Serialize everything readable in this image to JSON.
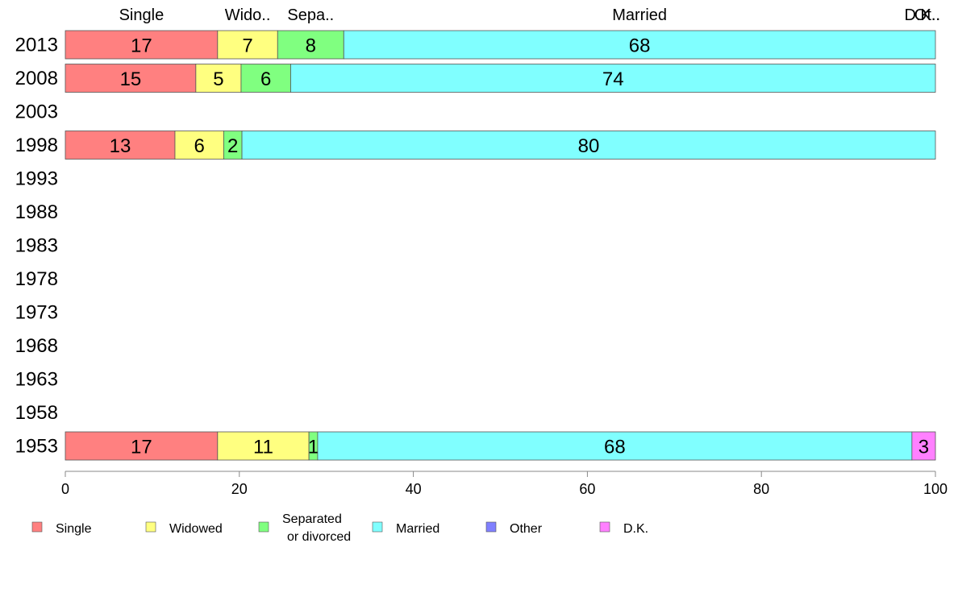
{
  "chart_data": {
    "type": "bar",
    "orientation": "horizontal",
    "stacked": true,
    "categories": [
      "2013",
      "2008",
      "2003",
      "1998",
      "1993",
      "1988",
      "1983",
      "1978",
      "1973",
      "1968",
      "1963",
      "1958",
      "1953"
    ],
    "series": [
      {
        "name": "Single",
        "color": "#ff8080",
        "values": [
          17.5,
          15,
          null,
          12.6,
          null,
          null,
          null,
          null,
          null,
          null,
          null,
          null,
          17.5
        ]
      },
      {
        "name": "Widowed",
        "color": "#ffff80",
        "values": [
          6.9,
          5.2,
          null,
          5.6,
          null,
          null,
          null,
          null,
          null,
          null,
          null,
          null,
          10.5
        ]
      },
      {
        "name": "Separated or divorced",
        "color": "#80ff80",
        "values": [
          7.6,
          5.7,
          null,
          2.1,
          null,
          null,
          null,
          null,
          null,
          null,
          null,
          null,
          1.0
        ]
      },
      {
        "name": "Married",
        "color": "#80ffff",
        "values": [
          68,
          74.1,
          null,
          79.7,
          null,
          null,
          null,
          null,
          null,
          null,
          null,
          null,
          68.3
        ]
      },
      {
        "name": "Other",
        "color": "#8080ff",
        "values": [
          0,
          0,
          null,
          0,
          null,
          null,
          null,
          null,
          null,
          null,
          null,
          null,
          0
        ]
      },
      {
        "name": "D.K.",
        "color": "#ff80ff",
        "values": [
          0,
          0,
          null,
          0,
          null,
          null,
          null,
          null,
          null,
          null,
          null,
          null,
          2.7
        ]
      }
    ],
    "data_labels": [
      [
        "17",
        "7",
        "8",
        "68",
        "",
        ""
      ],
      [
        "15",
        "5",
        "6",
        "74",
        "",
        ""
      ],
      [
        "",
        "",
        "",
        "",
        "",
        ""
      ],
      [
        "13",
        "6",
        "2",
        "80",
        "",
        ""
      ],
      [
        "",
        "",
        "",
        "",
        "",
        ""
      ],
      [
        "",
        "",
        "",
        "",
        "",
        ""
      ],
      [
        "",
        "",
        "",
        "",
        "",
        ""
      ],
      [
        "",
        "",
        "",
        "",
        "",
        ""
      ],
      [
        "",
        "",
        "",
        "",
        "",
        ""
      ],
      [
        "",
        "",
        "",
        "",
        "",
        ""
      ],
      [
        "",
        "",
        "",
        "",
        "",
        ""
      ],
      [
        "",
        "",
        "",
        "",
        "",
        ""
      ],
      [
        "17",
        "11",
        "1",
        "68",
        "",
        "3"
      ]
    ],
    "top_labels": [
      {
        "text": "Single",
        "at": 8.75
      },
      {
        "text": "Wido..",
        "at": 20.95
      },
      {
        "text": "Sepa..",
        "at": 28.2
      },
      {
        "text": "Married",
        "at": 66
      },
      {
        "text": "Ot..",
        "at": 100
      },
      {
        "text": "D.K..",
        "at": 100
      }
    ],
    "xlim": [
      0,
      100
    ],
    "xticks": [
      0,
      20,
      40,
      60,
      80,
      100
    ],
    "legend": {
      "position": "bottom",
      "items": [
        {
          "label": "Single",
          "color": "#ff8080"
        },
        {
          "label": "Widowed",
          "color": "#ffff80"
        },
        {
          "label": "Separated\n or divorced",
          "color": "#80ff80"
        },
        {
          "label": "Married",
          "color": "#80ffff"
        },
        {
          "label": "Other",
          "color": "#8080ff"
        },
        {
          "label": "D.K.",
          "color": "#ff80ff"
        }
      ]
    },
    "grid": false
  }
}
